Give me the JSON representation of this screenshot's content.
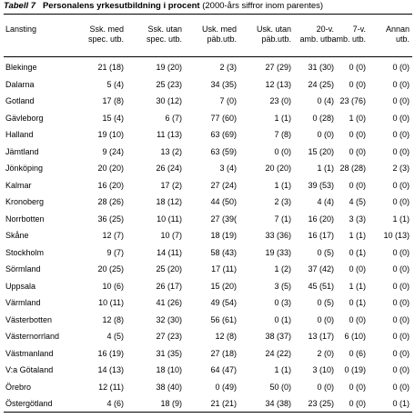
{
  "caption": {
    "label": "Tabell 7",
    "title": "Personalens yrkesutbildning i procent",
    "note": "(2000-års siffror inom parentes)"
  },
  "headers": {
    "lansting": "Lansting",
    "c1": [
      "Ssk. med",
      "spec. utb."
    ],
    "c2": [
      "Ssk. utan",
      "spec. utb."
    ],
    "c3": [
      "Usk. med",
      "päb.utb."
    ],
    "c4": [
      "Usk. utan",
      "päb.utb."
    ],
    "c5": [
      "20-v.",
      "amb. utb."
    ],
    "c6": [
      "7-v.",
      "amb. utb."
    ],
    "c7": [
      "Annan",
      "utb."
    ]
  },
  "rows": [
    {
      "name": "Blekinge",
      "c1": "21 (18)",
      "c2": "19 (20)",
      "c3": "2 (3)",
      "c4": "27 (29)",
      "c5": "31 (30)",
      "c6": "0 (0)",
      "c7": "0 (0)"
    },
    {
      "name": "Dalarna",
      "c1": "5 (4)",
      "c2": "25 (23)",
      "c3": "34 (35)",
      "c4": "12 (13)",
      "c5": "24 (25)",
      "c6": "0 (0)",
      "c7": "0 (0)"
    },
    {
      "name": "Gotland",
      "c1": "17 (8)",
      "c2": "30 (12)",
      "c3": "7 (0)",
      "c4": "23 (0)",
      "c5": "0 (4)",
      "c6": "23 (76)",
      "c7": "0 (0)"
    },
    {
      "name": "Gävleborg",
      "c1": "15 (4)",
      "c2": "6 (7)",
      "c3": "77 (60)",
      "c4": "1 (1)",
      "c5": "0 (28)",
      "c6": "1 (0)",
      "c7": "0 (0)"
    },
    {
      "name": "Halland",
      "c1": "19 (10)",
      "c2": "11 (13)",
      "c3": "63 (69)",
      "c4": "7 (8)",
      "c5": "0 (0)",
      "c6": "0 (0)",
      "c7": "0 (0)"
    },
    {
      "name": "Jämtland",
      "c1": "9 (24)",
      "c2": "13 (2)",
      "c3": "63 (59)",
      "c4": "0 (0)",
      "c5": "15 (20)",
      "c6": "0 (0)",
      "c7": "0 (0)"
    },
    {
      "name": "Jönköping",
      "c1": "20 (20)",
      "c2": "26 (24)",
      "c3": "3 (4)",
      "c4": "20 (20)",
      "c5": "1 (1)",
      "c6": "28 (28)",
      "c7": "2 (3)"
    },
    {
      "name": "Kalmar",
      "c1": "16 (20)",
      "c2": "17 (2)",
      "c3": "27 (24)",
      "c4": "1 (1)",
      "c5": "39 (53)",
      "c6": "0 (0)",
      "c7": "0 (0)"
    },
    {
      "name": "Kronoberg",
      "c1": "28 (26)",
      "c2": "18 (12)",
      "c3": "44 (50)",
      "c4": "2 (3)",
      "c5": "4 (4)",
      "c6": "4 (5)",
      "c7": "0 (0)"
    },
    {
      "name": "Norrbotten",
      "c1": "36 (25)",
      "c2": "10 (11)",
      "c3": "27 (39(",
      "c4": "7 (1)",
      "c5": "16 (20)",
      "c6": "3 (3)",
      "c7": "1 (1)"
    },
    {
      "name": "Skåne",
      "c1": "12 (7)",
      "c2": "10 (7)",
      "c3": "18 (19)",
      "c4": "33 (36)",
      "c5": "16 (17)",
      "c6": "1 (1)",
      "c7": "10 (13)"
    },
    {
      "name": "Stockholm",
      "c1": "9 (7)",
      "c2": "14 (11)",
      "c3": "58 (43)",
      "c4": "19 (33)",
      "c5": "0 (5)",
      "c6": "0 (1)",
      "c7": "0 (0)"
    },
    {
      "name": "Sörmland",
      "c1": "20 (25)",
      "c2": "25 (20)",
      "c3": "17 (11)",
      "c4": "1 (2)",
      "c5": "37 (42)",
      "c6": "0 (0)",
      "c7": "0 (0)"
    },
    {
      "name": "Uppsala",
      "c1": "10 (6)",
      "c2": "26 (17)",
      "c3": "15 (20)",
      "c4": "3 (5)",
      "c5": "45 (51)",
      "c6": "1 (1)",
      "c7": "0 (0)"
    },
    {
      "name": "Värmland",
      "c1": "10 (11)",
      "c2": "41 (26)",
      "c3": "49 (54)",
      "c4": "0 (3)",
      "c5": "0 (5)",
      "c6": "0 (1)",
      "c7": "0 (0)"
    },
    {
      "name": "Västerbotten",
      "c1": "12 (8)",
      "c2": "32 (30)",
      "c3": "56 (61)",
      "c4": "0 (1)",
      "c5": "0 (0)",
      "c6": "0 (0)",
      "c7": "0 (0)"
    },
    {
      "name": "Västernorrland",
      "c1": "4 (5)",
      "c2": "27 (23)",
      "c3": "12 (8)",
      "c4": "38 (37)",
      "c5": "13 (17)",
      "c6": "6 (10)",
      "c7": "0 (0)"
    },
    {
      "name": "Västmanland",
      "c1": "16 (19)",
      "c2": "31 (35)",
      "c3": "27 (18)",
      "c4": "24 (22)",
      "c5": "2 (0)",
      "c6": "0 (6)",
      "c7": "0 (0)"
    },
    {
      "name": "V:a Götaland",
      "c1": "14 (13)",
      "c2": "18 (10)",
      "c3": "64 (47)",
      "c4": "1 (1)",
      "c5": "3 (10)",
      "c6": "0 (19)",
      "c7": "0 (0)"
    },
    {
      "name": "Örebro",
      "c1": "12 (11)",
      "c2": "38 (40)",
      "c3": "0 (49)",
      "c4": "50 (0)",
      "c5": "0 (0)",
      "c6": "0 (0)",
      "c7": "0 (0)"
    },
    {
      "name": "Östergötland",
      "c1": "4 (6)",
      "c2": "18 (9)",
      "c3": "21 (21)",
      "c4": "34 (38)",
      "c5": "23 (25)",
      "c6": "0 (0)",
      "c7": "0 (1)"
    }
  ]
}
